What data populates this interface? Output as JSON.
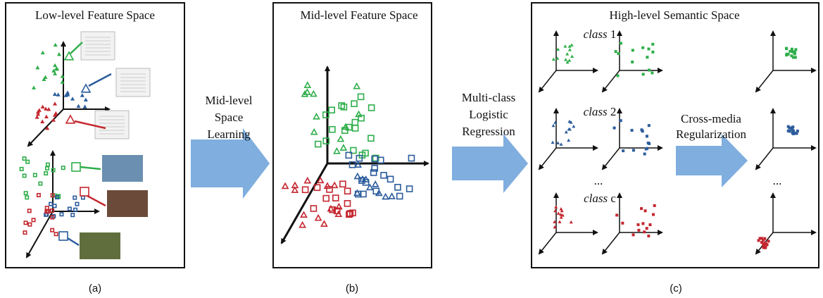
{
  "panels": [
    {
      "title": "Low-level Feature Space",
      "caption": "(a)"
    },
    {
      "title": "Mid-level Feature Space",
      "caption": "(b)"
    },
    {
      "title": "High-level Semantic Space",
      "caption": "(c)"
    }
  ],
  "arrows": [
    {
      "label": [
        "Mid-level",
        "Space",
        "Learning"
      ]
    },
    {
      "label": [
        "Multi-class",
        "Logistic",
        "Regression"
      ]
    },
    {
      "label": [
        "Cross-media",
        "Regularization"
      ]
    }
  ],
  "classes": [
    {
      "word": "class",
      "index": "1"
    },
    {
      "word": "class",
      "index": "2"
    },
    {
      "word": "class",
      "index": "c"
    }
  ],
  "ellipses": [
    "...",
    "..."
  ]
}
